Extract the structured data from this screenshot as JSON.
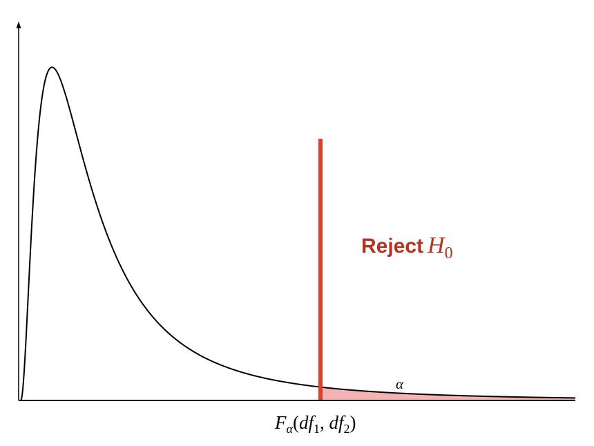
{
  "figure": {
    "reject_word": "Reject",
    "reject_symbol": "H",
    "reject_subscript": "0",
    "alpha_label": "α",
    "critical_label": {
      "F": "F",
      "F_sub": "α",
      "open": "(",
      "df1": "df",
      "df1_sub": "1",
      "comma": ", ",
      "df2": "df",
      "df2_sub": "2",
      "close": ")"
    }
  },
  "colors": {
    "curve": "#000000",
    "axes": "#000000",
    "critical_line": "#e03e2d",
    "rejection_fill": "#f4b4b4",
    "reject_text": "#b5321f"
  },
  "chart_data": {
    "type": "area",
    "distribution": "F",
    "shaded_region": "right-tail",
    "grid": false,
    "axis_ticks": false
  }
}
